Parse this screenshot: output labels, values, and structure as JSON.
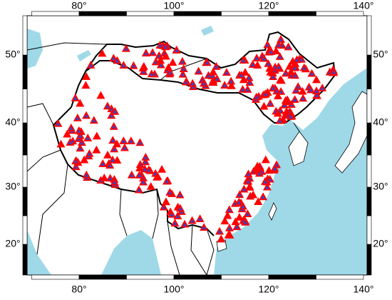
{
  "map": {
    "lon_ticks": [
      {
        "value": 80,
        "label": "80°"
      },
      {
        "value": 100,
        "label": "100°"
      },
      {
        "value": 120,
        "label": "120°"
      },
      {
        "value": 140,
        "label": "140°"
      }
    ],
    "lat_ticks": [
      {
        "value": 20,
        "label": "20°"
      },
      {
        "value": 30,
        "label": "30°"
      },
      {
        "value": 40,
        "label": "40°"
      },
      {
        "value": 50,
        "label": "50°"
      }
    ]
  }
}
